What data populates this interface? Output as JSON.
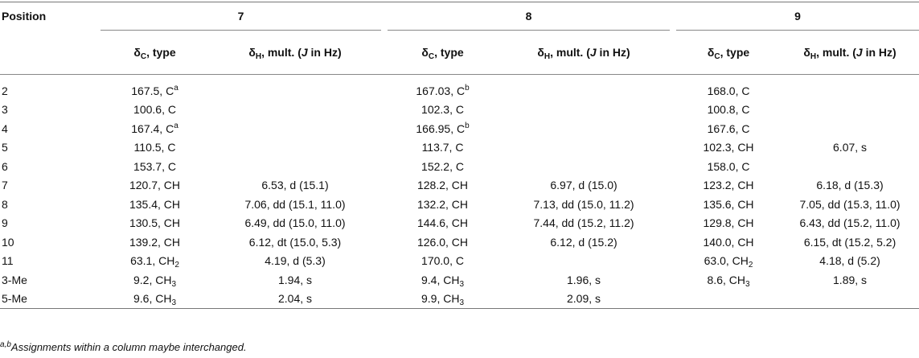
{
  "header": {
    "position_label": "Position",
    "compounds": [
      "7",
      "8",
      "9"
    ],
    "delta_c_symbol": "δ",
    "delta_c_sub": "C",
    "delta_c_rest": ", type",
    "delta_h_symbol": "δ",
    "delta_h_sub": "H",
    "delta_h_mid": ", mult. (",
    "delta_h_j": "J",
    "delta_h_end": " in Hz)"
  },
  "rows": [
    {
      "pos": "2",
      "c7": {
        "v": "167.5, C",
        "sup": "a"
      },
      "h7": "",
      "c8": {
        "v": "167.03, C",
        "sup": "b"
      },
      "h8": "",
      "c9": {
        "v": "168.0, C"
      },
      "h9": ""
    },
    {
      "pos": "3",
      "c7": {
        "v": "100.6, C"
      },
      "h7": "",
      "c8": {
        "v": "102.3, C"
      },
      "h8": "",
      "c9": {
        "v": "100.8, C"
      },
      "h9": ""
    },
    {
      "pos": "4",
      "c7": {
        "v": "167.4, C",
        "sup": "a"
      },
      "h7": "",
      "c8": {
        "v": "166.95, C",
        "sup": "b"
      },
      "h8": "",
      "c9": {
        "v": "167.6, C"
      },
      "h9": ""
    },
    {
      "pos": "5",
      "c7": {
        "v": "110.5, C"
      },
      "h7": "",
      "c8": {
        "v": "113.7, C"
      },
      "h8": "",
      "c9": {
        "v": "102.3, CH"
      },
      "h9": "6.07, s"
    },
    {
      "pos": "6",
      "c7": {
        "v": "153.7, C"
      },
      "h7": "",
      "c8": {
        "v": "152.2, C"
      },
      "h8": "",
      "c9": {
        "v": "158.0, C"
      },
      "h9": ""
    },
    {
      "pos": "7",
      "c7": {
        "v": "120.7, CH"
      },
      "h7": "6.53, d (15.1)",
      "c8": {
        "v": "128.2, CH"
      },
      "h8": "6.97, d (15.0)",
      "c9": {
        "v": "123.2, CH"
      },
      "h9": "6.18, d (15.3)"
    },
    {
      "pos": "8",
      "c7": {
        "v": "135.4, CH"
      },
      "h7": "7.06, dd (15.1, 11.0)",
      "c8": {
        "v": "132.2, CH"
      },
      "h8": "7.13, dd (15.0, 11.2)",
      "c9": {
        "v": "135.6, CH"
      },
      "h9": "7.05, dd (15.3, 11.0)"
    },
    {
      "pos": "9",
      "c7": {
        "v": "130.5, CH"
      },
      "h7": "6.49, dd (15.0, 11.0)",
      "c8": {
        "v": "144.6, CH"
      },
      "h8": "7.44, dd (15.2, 11.2)",
      "c9": {
        "v": "129.8, CH"
      },
      "h9": "6.43, dd (15.2, 11.0)"
    },
    {
      "pos": "10",
      "c7": {
        "v": "139.2, CH"
      },
      "h7": "6.12, dt (15.0, 5.3)",
      "c8": {
        "v": "126.0, CH"
      },
      "h8": "6.12, d (15.2)",
      "c9": {
        "v": "140.0, CH"
      },
      "h9": "6.15, dt (15.2, 5.2)"
    },
    {
      "pos": "11",
      "c7": {
        "v": "63.1, CH",
        "sub": "2"
      },
      "h7": "4.19, d (5.3)",
      "c8": {
        "v": "170.0, C"
      },
      "h8": "",
      "c9": {
        "v": "63.0, CH",
        "sub": "2"
      },
      "h9": "4.18, d (5.2)"
    },
    {
      "pos": "3-Me",
      "c7": {
        "v": "9.2, CH",
        "sub": "3"
      },
      "h7": "1.94, s",
      "c8": {
        "v": "9.4, CH",
        "sub": "3"
      },
      "h8": "1.96, s",
      "c9": {
        "v": "8.6, CH",
        "sub": "3"
      },
      "h9": "1.89, s"
    },
    {
      "pos": "5-Me",
      "c7": {
        "v": "9.6, CH",
        "sub": "3"
      },
      "h7": "2.04, s",
      "c8": {
        "v": "9.9, CH",
        "sub": "3"
      },
      "h8": "2.09, s",
      "c9": {
        "v": "",
        "sub": ""
      },
      "h9": ""
    }
  ],
  "footnote": {
    "sup": "a,b",
    "text": "Assignments within a column maybe interchanged."
  }
}
